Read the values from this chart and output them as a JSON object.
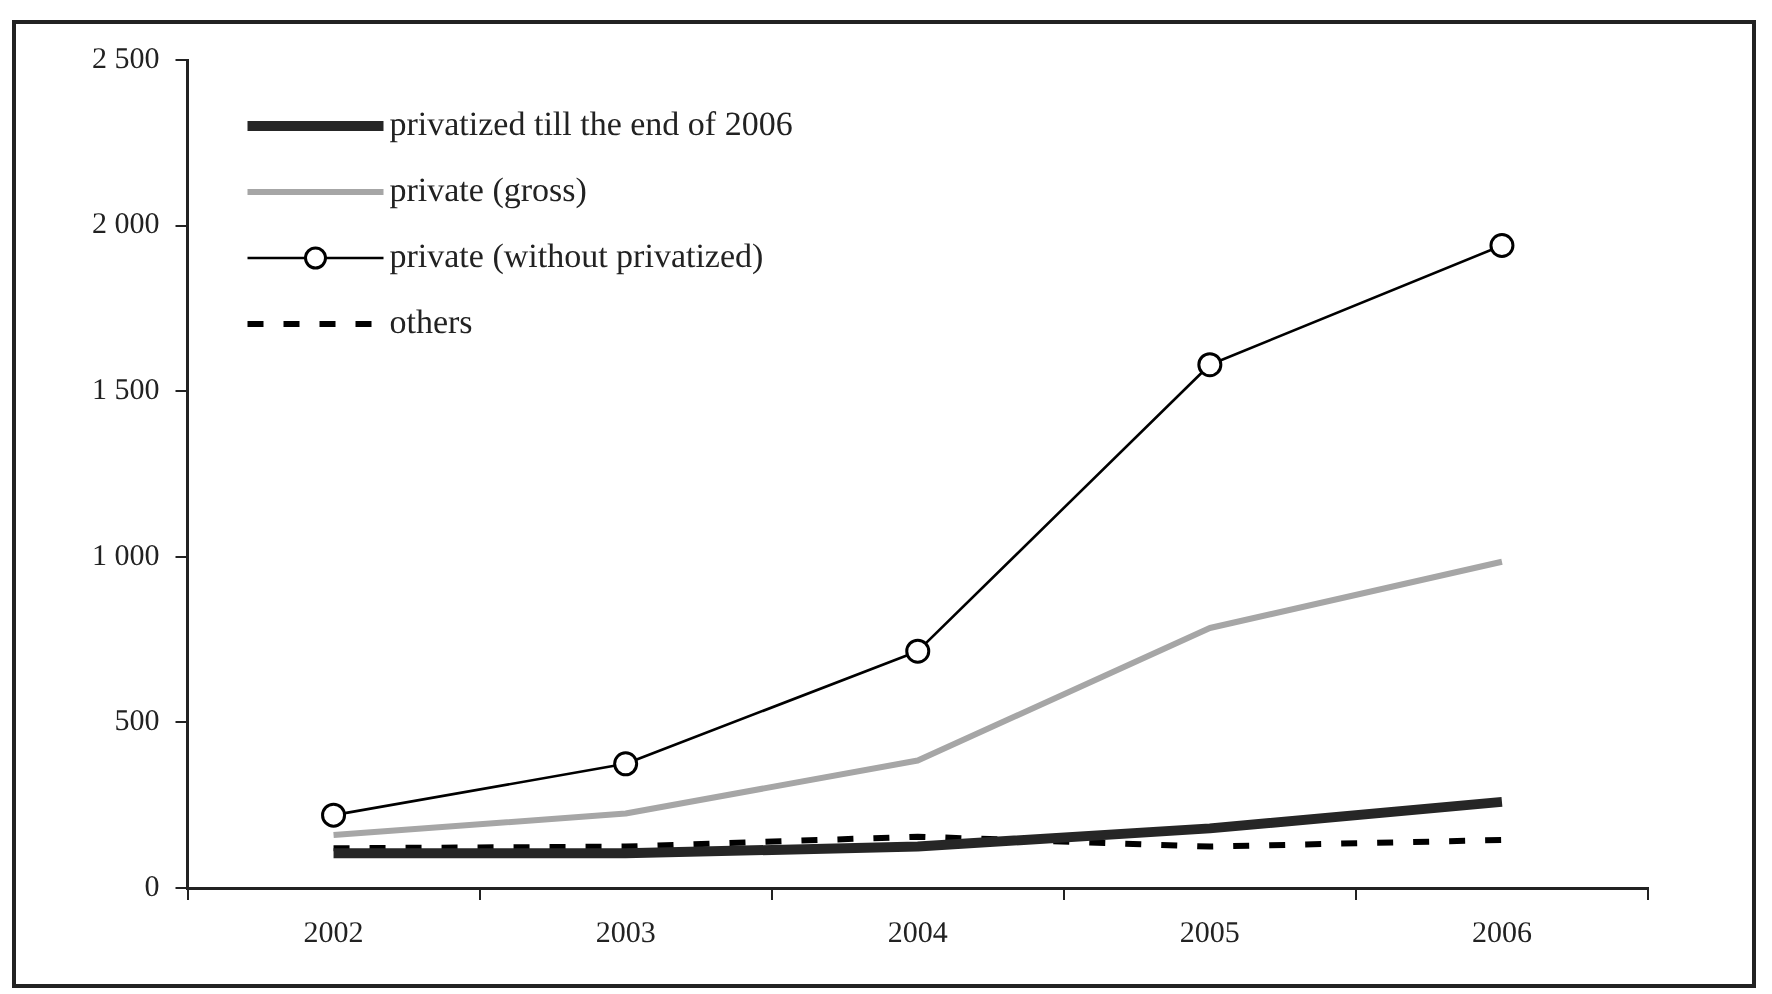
{
  "chart_data": {
    "type": "line",
    "categories": [
      "2002",
      "2003",
      "2004",
      "2005",
      "2006"
    ],
    "series": [
      {
        "name": "privatized till the end of 2006",
        "color": "#262626",
        "line_style": "solid",
        "marker": "none",
        "values": [
          105,
          105,
          125,
          180,
          260
        ]
      },
      {
        "name": "private (gross)",
        "color": "#a6a6a6",
        "line_style": "solid",
        "marker": "none",
        "values": [
          160,
          225,
          385,
          785,
          985
        ]
      },
      {
        "name": "private (without privatized)",
        "color": "#000000",
        "line_style": "solid",
        "marker": "circle",
        "values": [
          220,
          375,
          715,
          1580,
          1940
        ]
      },
      {
        "name": "others",
        "color": "#000000",
        "line_style": "dashed",
        "marker": "none",
        "values": [
          120,
          125,
          155,
          125,
          145
        ]
      }
    ],
    "ylim": [
      0,
      2500
    ],
    "yticks": [
      {
        "value": 0,
        "label": "0"
      },
      {
        "value": 500,
        "label": "500"
      },
      {
        "value": 1000,
        "label": "1 000"
      },
      {
        "value": 1500,
        "label": "1 500"
      },
      {
        "value": 2000,
        "label": "2 000"
      },
      {
        "value": 2500,
        "label": "2 500"
      }
    ],
    "grid": false,
    "legend": "top left"
  }
}
